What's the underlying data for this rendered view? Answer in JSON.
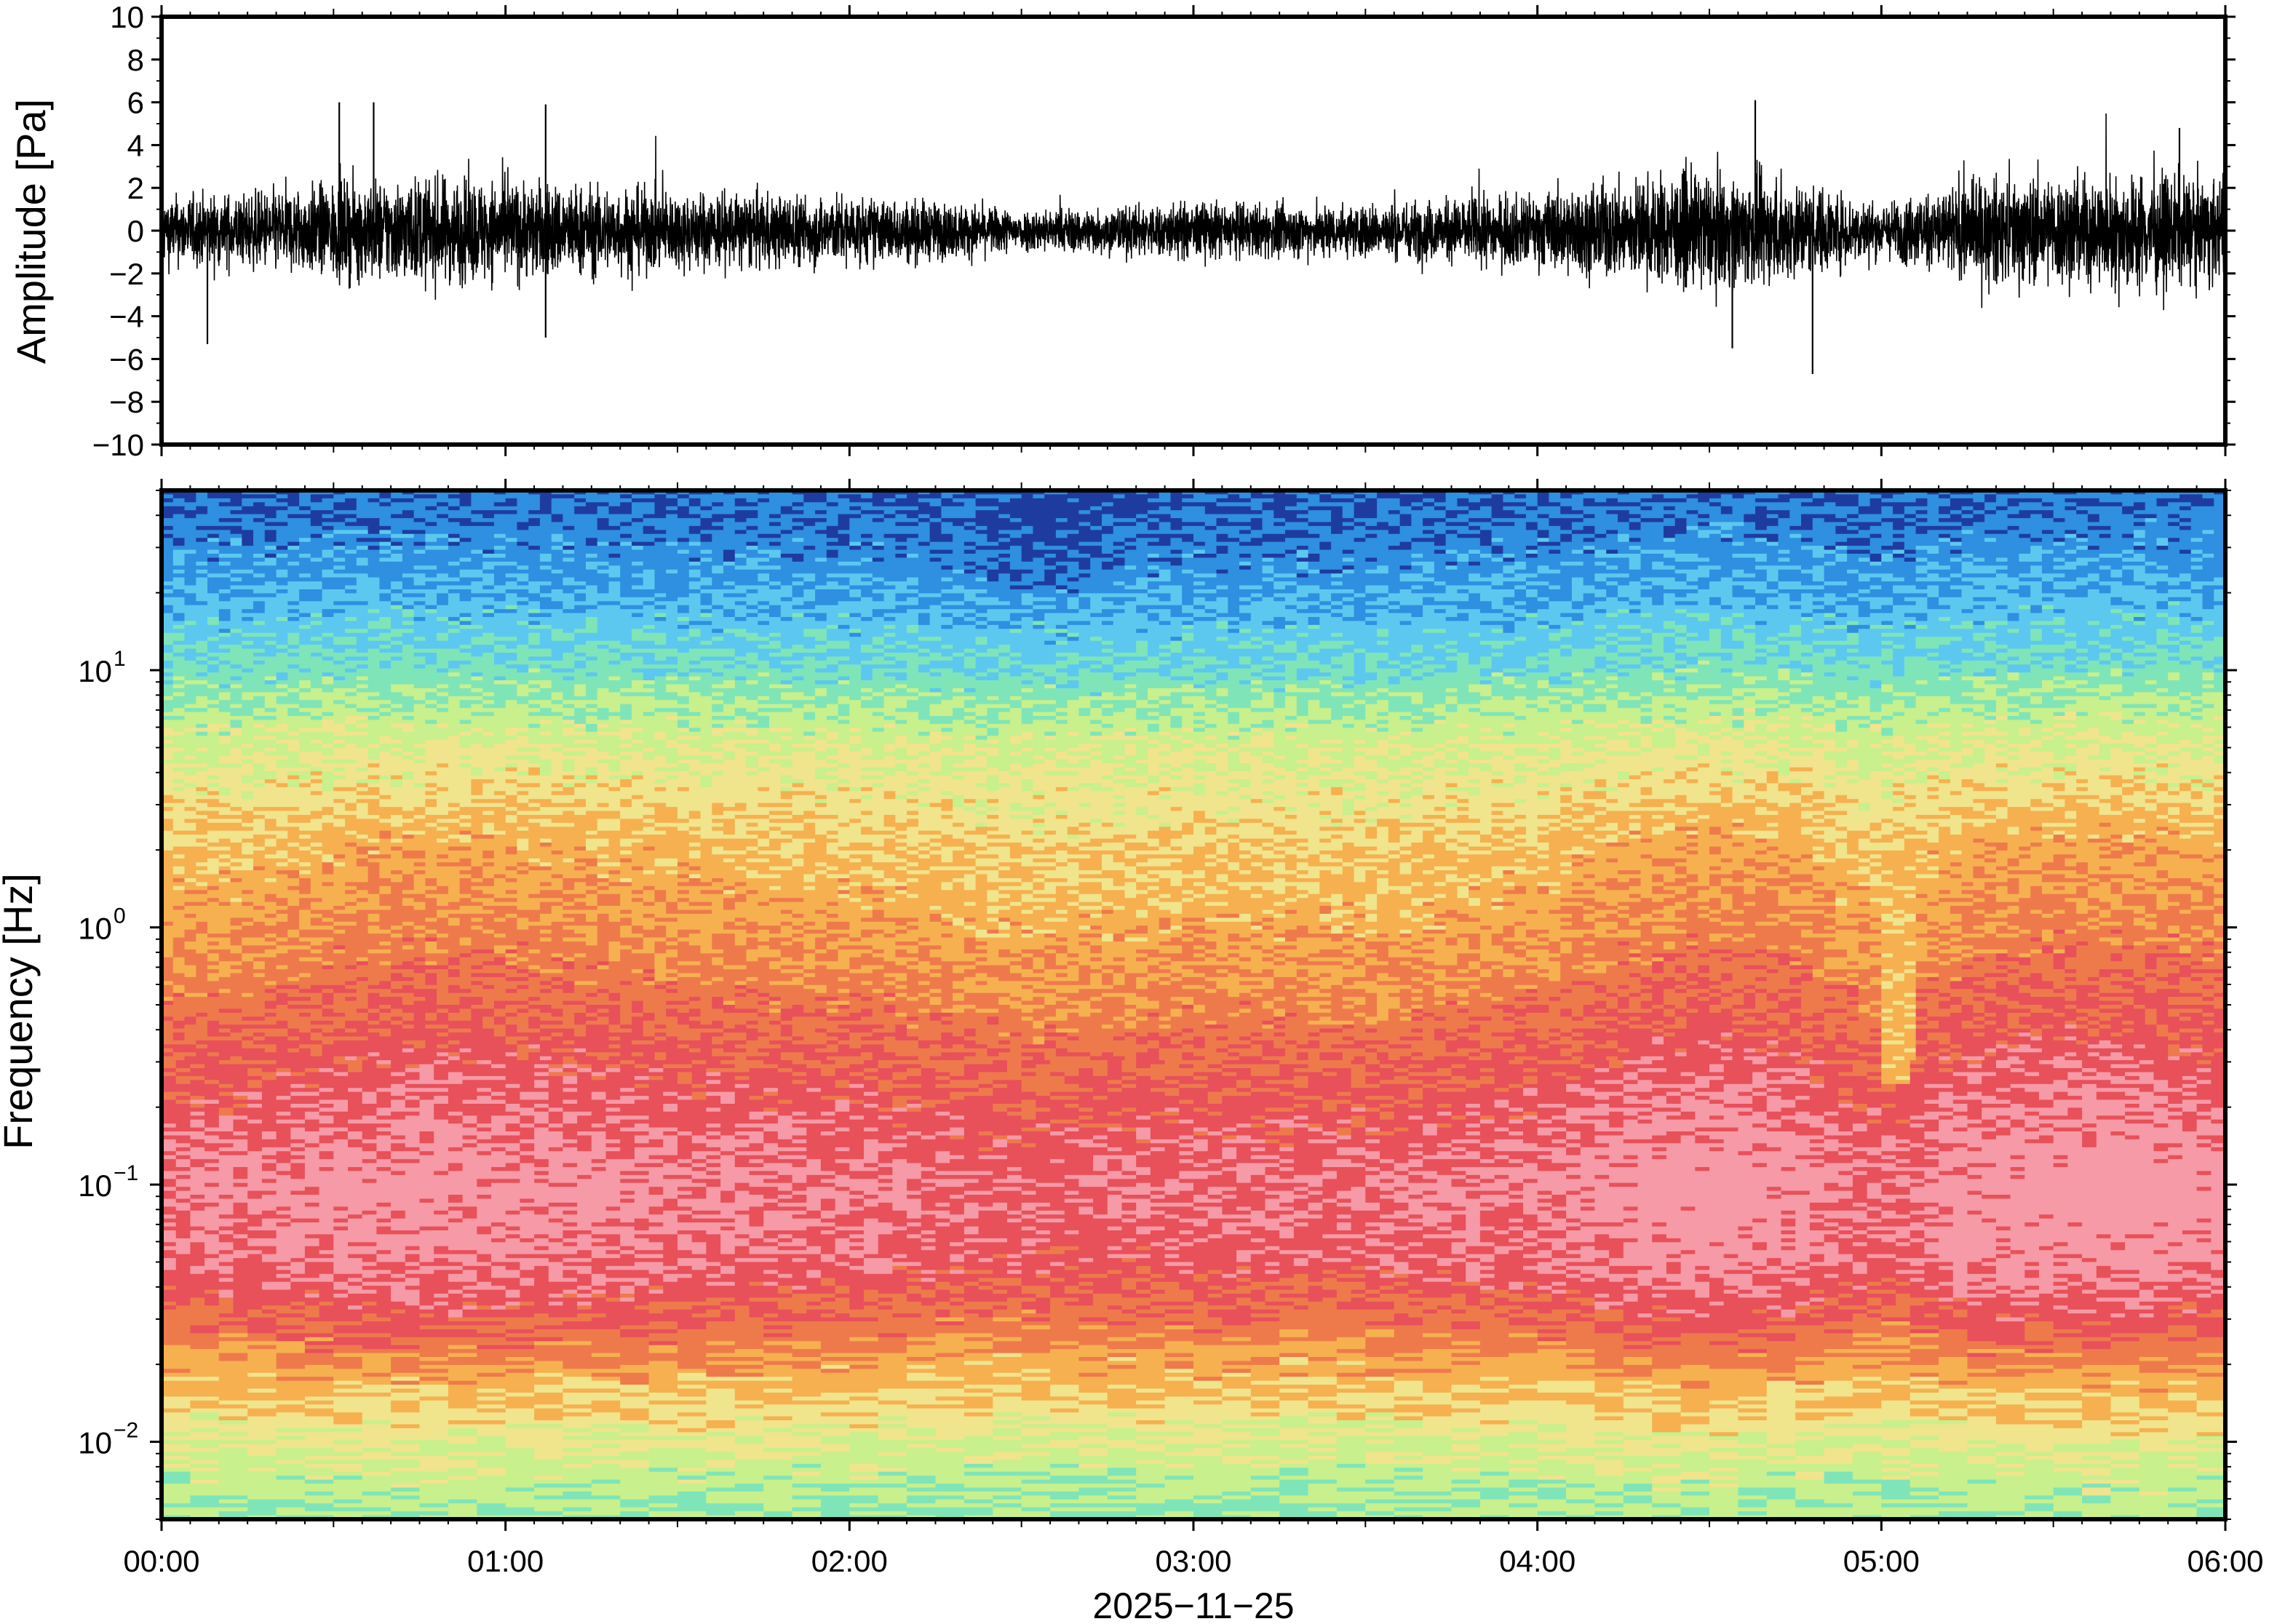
{
  "colors": {
    "trace": "#000000",
    "frame": "#000000",
    "background": "#ffffff"
  },
  "chart_data": [
    {
      "type": "line",
      "panel": "waveform",
      "ylabel": "Amplitude [Pa]",
      "ylim": [
        -10,
        10
      ],
      "yticks": [
        10,
        8,
        6,
        4,
        2,
        0,
        -2,
        -4,
        -6,
        -8,
        -10
      ],
      "ytick_labels": [
        "10",
        "8",
        "6",
        "4",
        "2",
        "0",
        "−2",
        "−4",
        "−6",
        "−8",
        "−10"
      ],
      "xlim": [
        "00:00",
        "06:00"
      ],
      "noise_envelope": {
        "x_hours": [
          0.0,
          0.25,
          0.5,
          0.75,
          1.0,
          1.25,
          1.5,
          1.75,
          2.0,
          2.25,
          2.5,
          2.75,
          3.0,
          3.25,
          3.5,
          3.75,
          4.0,
          4.25,
          4.5,
          4.75,
          5.0,
          5.25,
          5.5,
          5.75,
          6.0
        ],
        "typical_amplitude_pa": [
          1.3,
          1.4,
          1.8,
          2.0,
          1.9,
          1.7,
          1.5,
          1.4,
          1.3,
          1.1,
          0.8,
          0.9,
          1.1,
          1.0,
          1.0,
          1.2,
          1.4,
          1.9,
          2.2,
          1.9,
          1.0,
          1.9,
          2.1,
          2.2,
          1.8
        ]
      },
      "peaks": [
        {
          "t": "00:08",
          "y": -5.3
        },
        {
          "t": "00:31",
          "y": 6.0
        },
        {
          "t": "00:37",
          "y": 6.0
        },
        {
          "t": "01:07",
          "y": 5.9
        },
        {
          "t": "01:07",
          "y": -5.0
        },
        {
          "t": "04:34",
          "y": -5.5
        },
        {
          "t": "04:38",
          "y": 6.1
        },
        {
          "t": "04:48",
          "y": -6.7
        },
        {
          "t": "05:52",
          "y": 4.8
        }
      ]
    },
    {
      "type": "heatmap",
      "panel": "spectrogram",
      "ylabel": "Frequency [Hz]",
      "yscale": "log",
      "ylim": [
        0.005,
        50
      ],
      "yticks": [
        0.01,
        0.1,
        1,
        10
      ],
      "ytick_base": "10",
      "ytick_exponents": [
        "−2",
        "−1",
        "0",
        "1"
      ],
      "xlim": [
        "00:00",
        "06:00"
      ],
      "xticks": [
        "00:00",
        "01:00",
        "02:00",
        "03:00",
        "04:00",
        "05:00",
        "06:00"
      ],
      "xlabel": "2025−11−25",
      "colormap": [
        "#1e3ca0",
        "#2f8fe0",
        "#5cc8f0",
        "#7fe5b8",
        "#c8f08c",
        "#f0e48c",
        "#f6b050",
        "#ee7a4c",
        "#e8505a",
        "#f59aa6"
      ],
      "color_levels": {
        "frequency_hz": [
          40,
          20,
          10,
          5,
          2,
          1,
          0.5,
          0.2,
          0.1,
          0.05,
          0.03,
          0.02,
          0.01,
          0.006
        ],
        "level_index": [
          0.6,
          1.5,
          2.8,
          4.5,
          5.8,
          6.4,
          7.2,
          8.2,
          8.8,
          8.5,
          7.5,
          6.3,
          4.6,
          3.6
        ]
      },
      "features": [
        {
          "t": "05:03",
          "fmin_hz": 0.25,
          "fmax_hz": 2.0,
          "description_level": 5.6
        }
      ]
    }
  ]
}
